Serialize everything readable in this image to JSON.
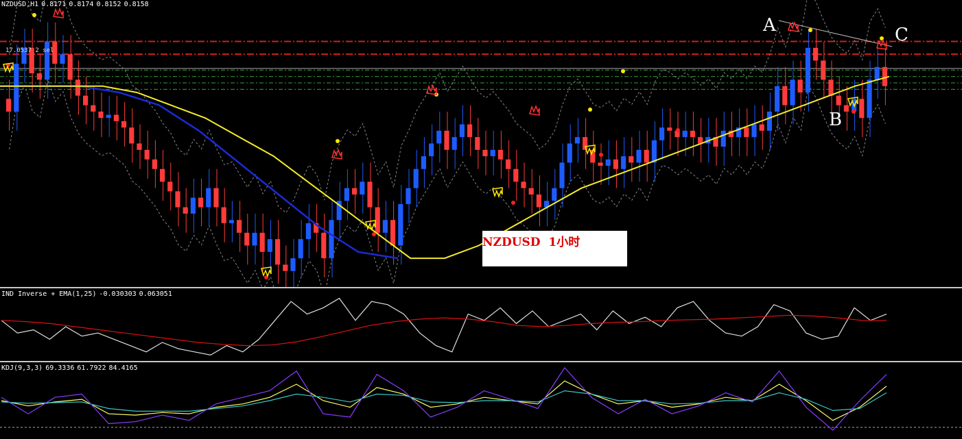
{
  "main_title": {
    "symbol": "NZDUSD,H1",
    "o": "0.8171",
    "h": "0.8174",
    "l": "0.8152",
    "c": "0.8158"
  },
  "trade_label": "17.0537 2 sel",
  "points": {
    "a": "A",
    "b": "B",
    "c": "C"
  },
  "note": "NZDUSD  1小时",
  "ind_title": {
    "name": "IND Inverse + EMA(1,25)",
    "v1": "-0.030303",
    "v2": "0.063051"
  },
  "kdj_title": {
    "name": "KDJ(9,3,3)",
    "k": "69.3336",
    "d": "61.7922",
    "j": "84.4165"
  },
  "colors": {
    "bull": "#1e5bff",
    "bear": "#ff3b3b",
    "ma_slow": "#1a2bd6",
    "ma_fast": "#f5ec2a",
    "ema_red": "#e01010",
    "k": "#ffff66",
    "d": "#39c6c6",
    "j": "#8a3cff"
  },
  "chart_data": [
    {
      "type": "candlestick",
      "title": "NZDUSD,H1",
      "ylim": [
        0.8095,
        0.8185
      ],
      "resistance_levels": [
        0.8172,
        0.8168
      ],
      "support_levels": [
        0.8163,
        0.8161,
        0.8159,
        0.8157
      ],
      "closes": [
        0.815,
        0.8165,
        0.817,
        0.8162,
        0.816,
        0.8172,
        0.8165,
        0.8168,
        0.816,
        0.8155,
        0.8152,
        0.815,
        0.8148,
        0.8149,
        0.8147,
        0.8145,
        0.814,
        0.8138,
        0.8135,
        0.8132,
        0.8128,
        0.8125,
        0.812,
        0.8118,
        0.8123,
        0.812,
        0.8126,
        0.812,
        0.8115,
        0.8116,
        0.8112,
        0.8108,
        0.8112,
        0.8106,
        0.811,
        0.8102,
        0.81,
        0.8104,
        0.811,
        0.8115,
        0.8112,
        0.8104,
        0.8116,
        0.8122,
        0.8126,
        0.8124,
        0.8128,
        0.812,
        0.8112,
        0.8116,
        0.8108,
        0.8121,
        0.8126,
        0.8132,
        0.8136,
        0.814,
        0.8144,
        0.8138,
        0.8142,
        0.8146,
        0.8142,
        0.8138,
        0.8136,
        0.8138,
        0.8135,
        0.8132,
        0.8128,
        0.8126,
        0.8124,
        0.812,
        0.8122,
        0.8126,
        0.8134,
        0.814,
        0.8142,
        0.8138,
        0.8134,
        0.8133,
        0.8135,
        0.8132,
        0.8136,
        0.8134,
        0.8138,
        0.8134,
        0.8141,
        0.8145,
        0.8144,
        0.8142,
        0.8144,
        0.8142,
        0.814,
        0.8142,
        0.8139,
        0.8144,
        0.8142,
        0.8145,
        0.8142,
        0.8146,
        0.8144,
        0.815,
        0.8158,
        0.8152,
        0.816,
        0.8156,
        0.817,
        0.8166,
        0.816,
        0.8155,
        0.8152,
        0.815,
        0.8154,
        0.8148,
        0.816,
        0.8164,
        0.8158
      ],
      "ma_fast": [
        0.8158,
        0.8158,
        0.8158,
        0.8158,
        0.8156,
        0.8152,
        0.8148,
        0.8142,
        0.8136,
        0.8128,
        0.812,
        0.8112,
        0.8104,
        0.8104,
        0.8108,
        0.8114,
        0.812,
        0.8126,
        0.813,
        0.8134,
        0.8138,
        0.8142,
        0.8146,
        0.815,
        0.8154,
        0.8158,
        0.8161
      ],
      "ma_slow": [
        0.8158,
        0.8158,
        0.8158,
        0.8156,
        0.8152,
        0.8144,
        0.8134,
        0.8124,
        0.8114,
        0.8106,
        0.8104
      ],
      "up_arrows": [
        "A",
        "C"
      ],
      "down_arrows": [
        "B"
      ]
    },
    {
      "type": "line",
      "title": "IND Inverse + EMA(1,25)",
      "series": [
        {
          "name": "IND Inverse",
          "values": [
            0.6,
            0.4,
            0.45,
            0.3,
            0.5,
            0.35,
            0.4,
            0.3,
            0.2,
            0.1,
            0.25,
            0.15,
            0.1,
            0.05,
            0.2,
            0.1,
            0.3,
            0.6,
            0.9,
            0.7,
            0.8,
            0.95,
            0.6,
            0.9,
            0.85,
            0.7,
            0.4,
            0.2,
            0.1,
            0.7,
            0.6,
            0.8,
            0.55,
            0.75,
            0.5,
            0.6,
            0.7,
            0.45,
            0.75,
            0.55,
            0.65,
            0.5,
            0.8,
            0.9,
            0.6,
            0.4,
            0.35,
            0.5,
            0.85,
            0.75,
            0.4,
            0.3,
            0.35,
            0.8,
            0.6,
            0.7
          ]
        },
        {
          "name": "EMA",
          "values": [
            0.6,
            0.58,
            0.55,
            0.5,
            0.45,
            0.4,
            0.35,
            0.3,
            0.25,
            0.22,
            0.2,
            0.21,
            0.26,
            0.34,
            0.43,
            0.52,
            0.58,
            0.62,
            0.64,
            0.62,
            0.58,
            0.52,
            0.5,
            0.52,
            0.55,
            0.57,
            0.58,
            0.6,
            0.61,
            0.62,
            0.64,
            0.66,
            0.68,
            0.67,
            0.64,
            0.6,
            0.6
          ]
        }
      ]
    },
    {
      "type": "line",
      "title": "KDJ(9,3,3)",
      "series": [
        {
          "name": "K",
          "values": [
            0.5,
            0.42,
            0.48,
            0.52,
            0.3,
            0.28,
            0.32,
            0.3,
            0.4,
            0.45,
            0.55,
            0.75,
            0.5,
            0.4,
            0.7,
            0.6,
            0.4,
            0.45,
            0.55,
            0.5,
            0.45,
            0.8,
            0.6,
            0.45,
            0.5,
            0.4,
            0.45,
            0.55,
            0.5,
            0.75,
            0.5,
            0.2,
            0.4,
            0.72
          ]
        },
        {
          "name": "D",
          "values": [
            0.48,
            0.46,
            0.47,
            0.48,
            0.38,
            0.34,
            0.34,
            0.34,
            0.38,
            0.42,
            0.5,
            0.6,
            0.55,
            0.48,
            0.6,
            0.58,
            0.48,
            0.47,
            0.5,
            0.5,
            0.48,
            0.65,
            0.6,
            0.5,
            0.5,
            0.45,
            0.46,
            0.5,
            0.5,
            0.62,
            0.52,
            0.35,
            0.38,
            0.62
          ]
        },
        {
          "name": "J",
          "values": [
            0.55,
            0.3,
            0.55,
            0.6,
            0.15,
            0.18,
            0.28,
            0.2,
            0.45,
            0.55,
            0.65,
            0.95,
            0.3,
            0.25,
            0.9,
            0.65,
            0.25,
            0.4,
            0.65,
            0.52,
            0.38,
            1.0,
            0.55,
            0.3,
            0.52,
            0.3,
            0.42,
            0.62,
            0.48,
            0.95,
            0.4,
            0.05,
            0.5,
            0.9
          ]
        }
      ]
    }
  ]
}
